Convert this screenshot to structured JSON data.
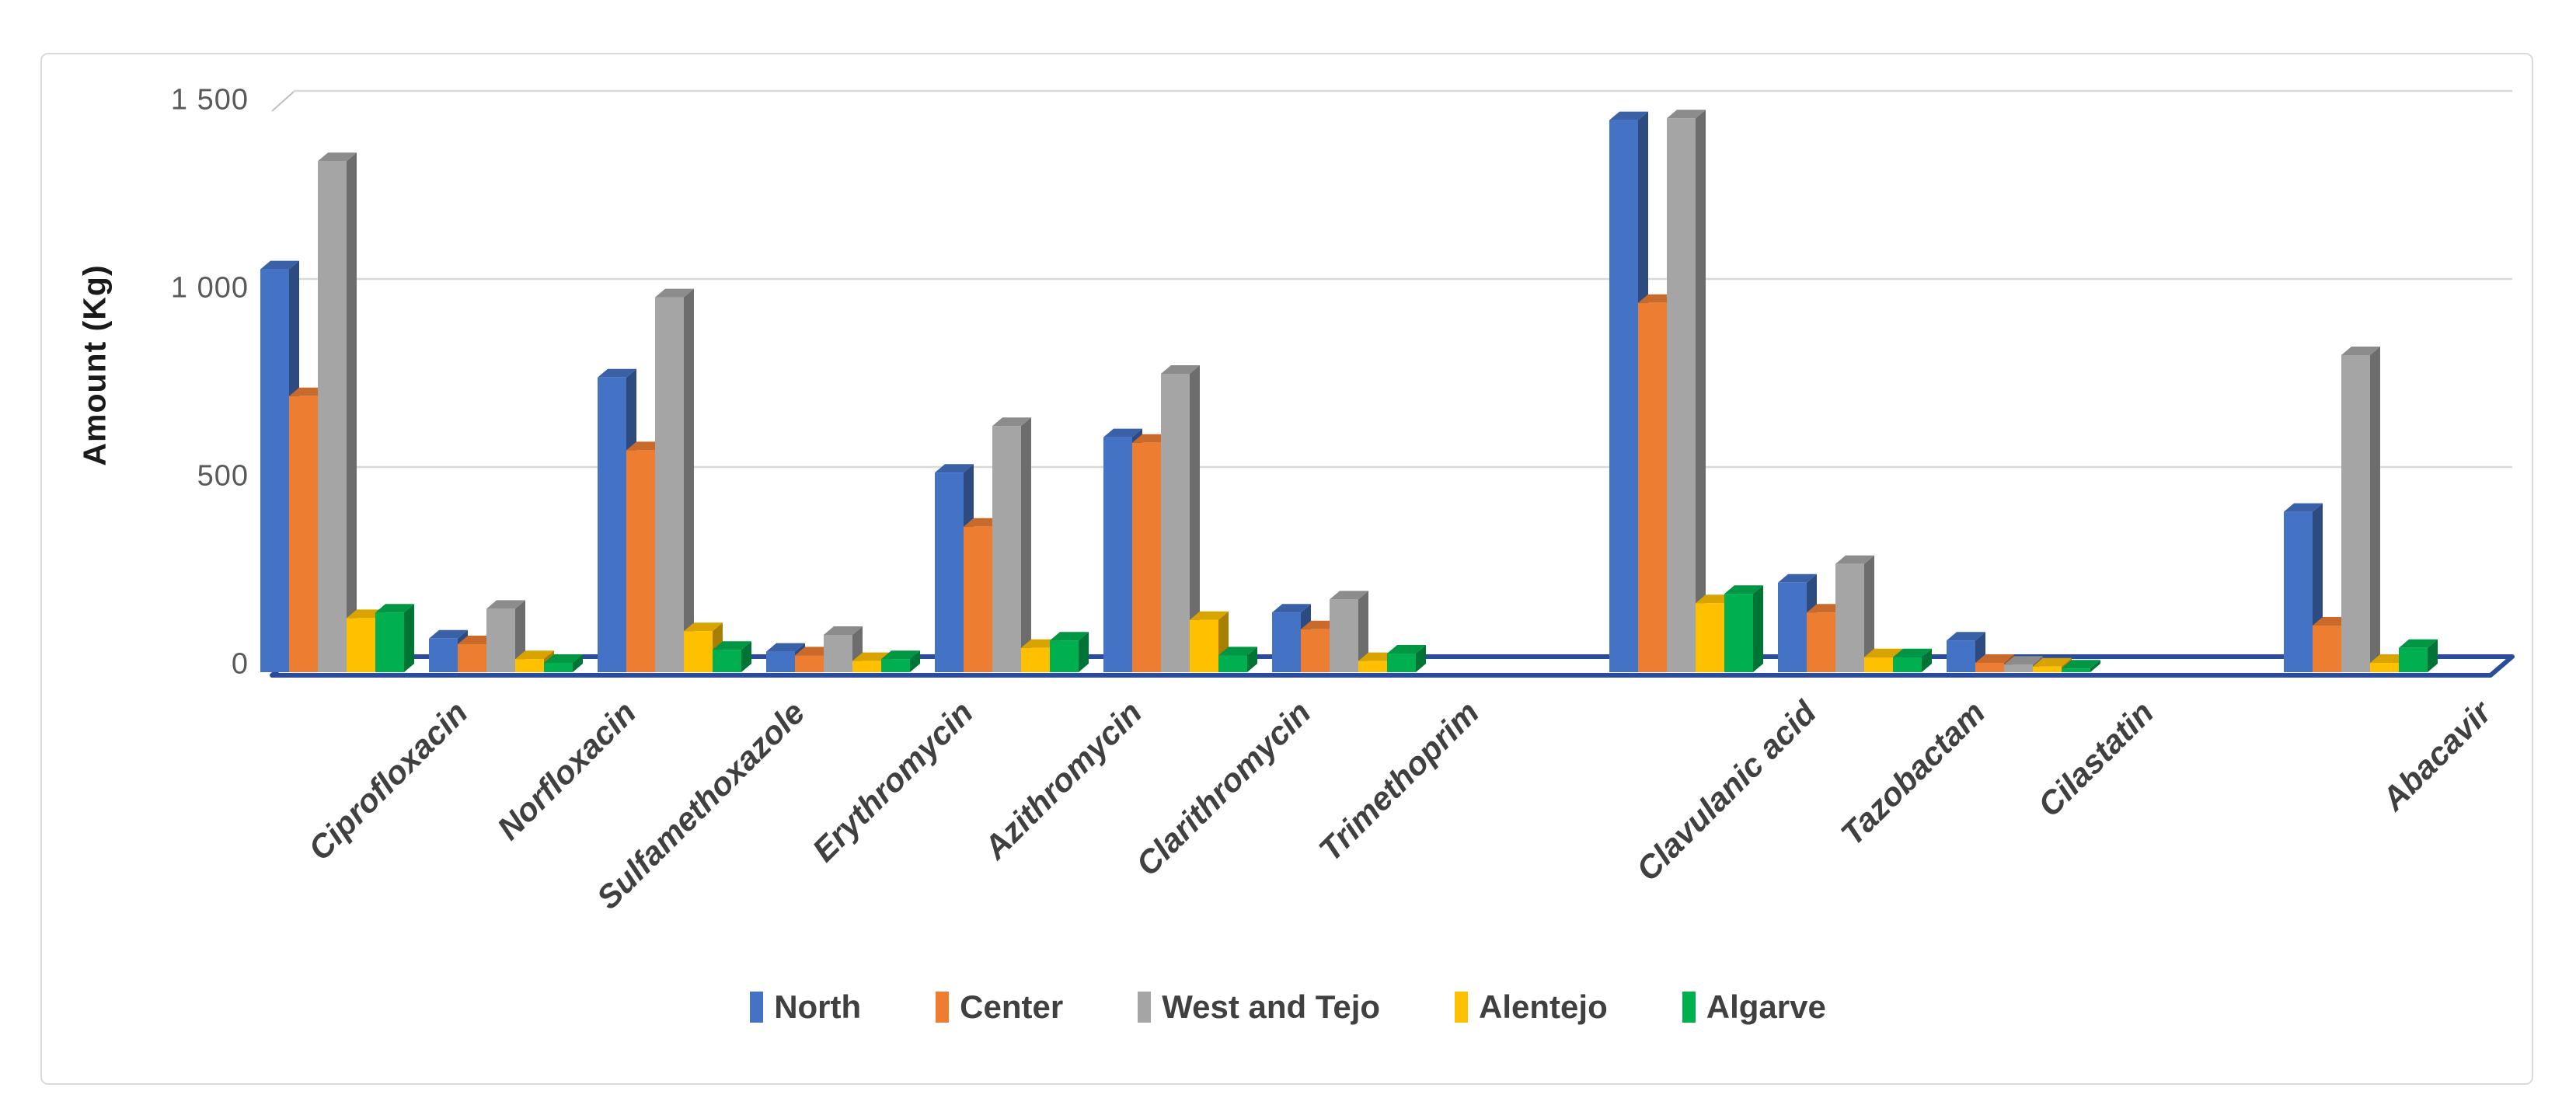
{
  "chart_data": {
    "type": "bar",
    "title": "",
    "xlabel": "",
    "ylabel": "Amount (Kg)",
    "ylim": [
      0,
      1500
    ],
    "yticks": [
      0,
      500,
      1000,
      1500
    ],
    "ytick_labels": [
      "0",
      "500",
      "1 000",
      "1 500"
    ],
    "grid": true,
    "style": "excel-3d-clustered-column",
    "legend_position": "bottom",
    "categories": [
      "Ciprofloxacin",
      "Norfloxacin",
      "Sulfamethoxazole",
      "Erythromycin",
      "Azithromycin",
      "Clarithromycin",
      "Trimethoprim",
      "Clavulanic acid",
      "Tazobactam",
      "Cilastatin",
      "Abacavir"
    ],
    "gap_after_categories": [
      "Trimethoprim",
      "Cilastatin"
    ],
    "series": [
      {
        "name": "North",
        "color": "#4472C4",
        "values": [
          1080,
          90,
          790,
          55,
          535,
          630,
          160,
          1480,
          240,
          85,
          430
        ]
      },
      {
        "name": "Center",
        "color": "#ED7D31",
        "values": [
          740,
          75,
          595,
          45,
          390,
          615,
          115,
          990,
          160,
          25,
          125
        ]
      },
      {
        "name": "West and Tejo",
        "color": "#A5A5A5",
        "values": [
          1370,
          170,
          1005,
          100,
          660,
          800,
          195,
          1485,
          290,
          20,
          850
        ]
      },
      {
        "name": "Alentejo",
        "color": "#FFC000",
        "values": [
          145,
          35,
          110,
          30,
          65,
          140,
          30,
          185,
          40,
          15,
          25
        ]
      },
      {
        "name": "Algarve",
        "color": "#00B050",
        "values": [
          160,
          25,
          60,
          35,
          85,
          45,
          50,
          210,
          40,
          10,
          65
        ]
      }
    ],
    "colors": {
      "gridline": "#D9D9D9",
      "floor_outline": "#2B4C9B",
      "tick_text": "#595959",
      "category_text": "#404040",
      "axis_title_text": "#1a1a1a",
      "legend_text": "#404040",
      "chart_border": "#D9D9D9"
    }
  }
}
